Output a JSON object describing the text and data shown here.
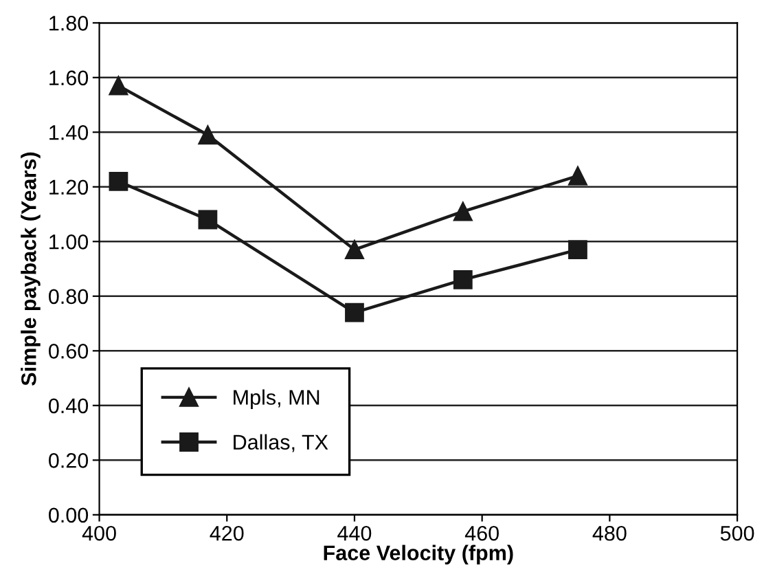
{
  "chart_data": {
    "type": "line",
    "xlabel": "Face Velocity (fpm)",
    "ylabel": "Simple payback (Years)",
    "x": [
      403,
      417,
      440,
      457,
      475
    ],
    "series": [
      {
        "name": "Mpls, MN",
        "color": "#1a1a1a",
        "marker": "triangle",
        "values": [
          1.57,
          1.39,
          0.97,
          1.11,
          1.24
        ]
      },
      {
        "name": "Dallas, TX",
        "color": "#1a1a1a",
        "marker": "square",
        "values": [
          1.22,
          1.08,
          0.74,
          0.86,
          0.97
        ]
      }
    ],
    "xlim": [
      400,
      500
    ],
    "xticks": [
      400,
      420,
      440,
      460,
      480,
      500
    ],
    "ylim": [
      0,
      1.8
    ],
    "yticks": [
      {
        "value": 0,
        "label": "0.00"
      },
      {
        "value": 0.2,
        "label": "0.20"
      },
      {
        "value": 0.4,
        "label": "0.40"
      },
      {
        "value": 0.6,
        "label": "0.60"
      },
      {
        "value": 0.8,
        "label": "0.80"
      },
      {
        "value": 1.0,
        "label": "1.00"
      },
      {
        "value": 1.2,
        "label": "1.20"
      },
      {
        "value": 1.4,
        "label": "1.40"
      },
      {
        "value": 1.6,
        "label": "1.60"
      },
      {
        "value": 1.8,
        "label": "1.80"
      }
    ],
    "grid": "y",
    "legend": "lower left",
    "line_style": "solid"
  }
}
